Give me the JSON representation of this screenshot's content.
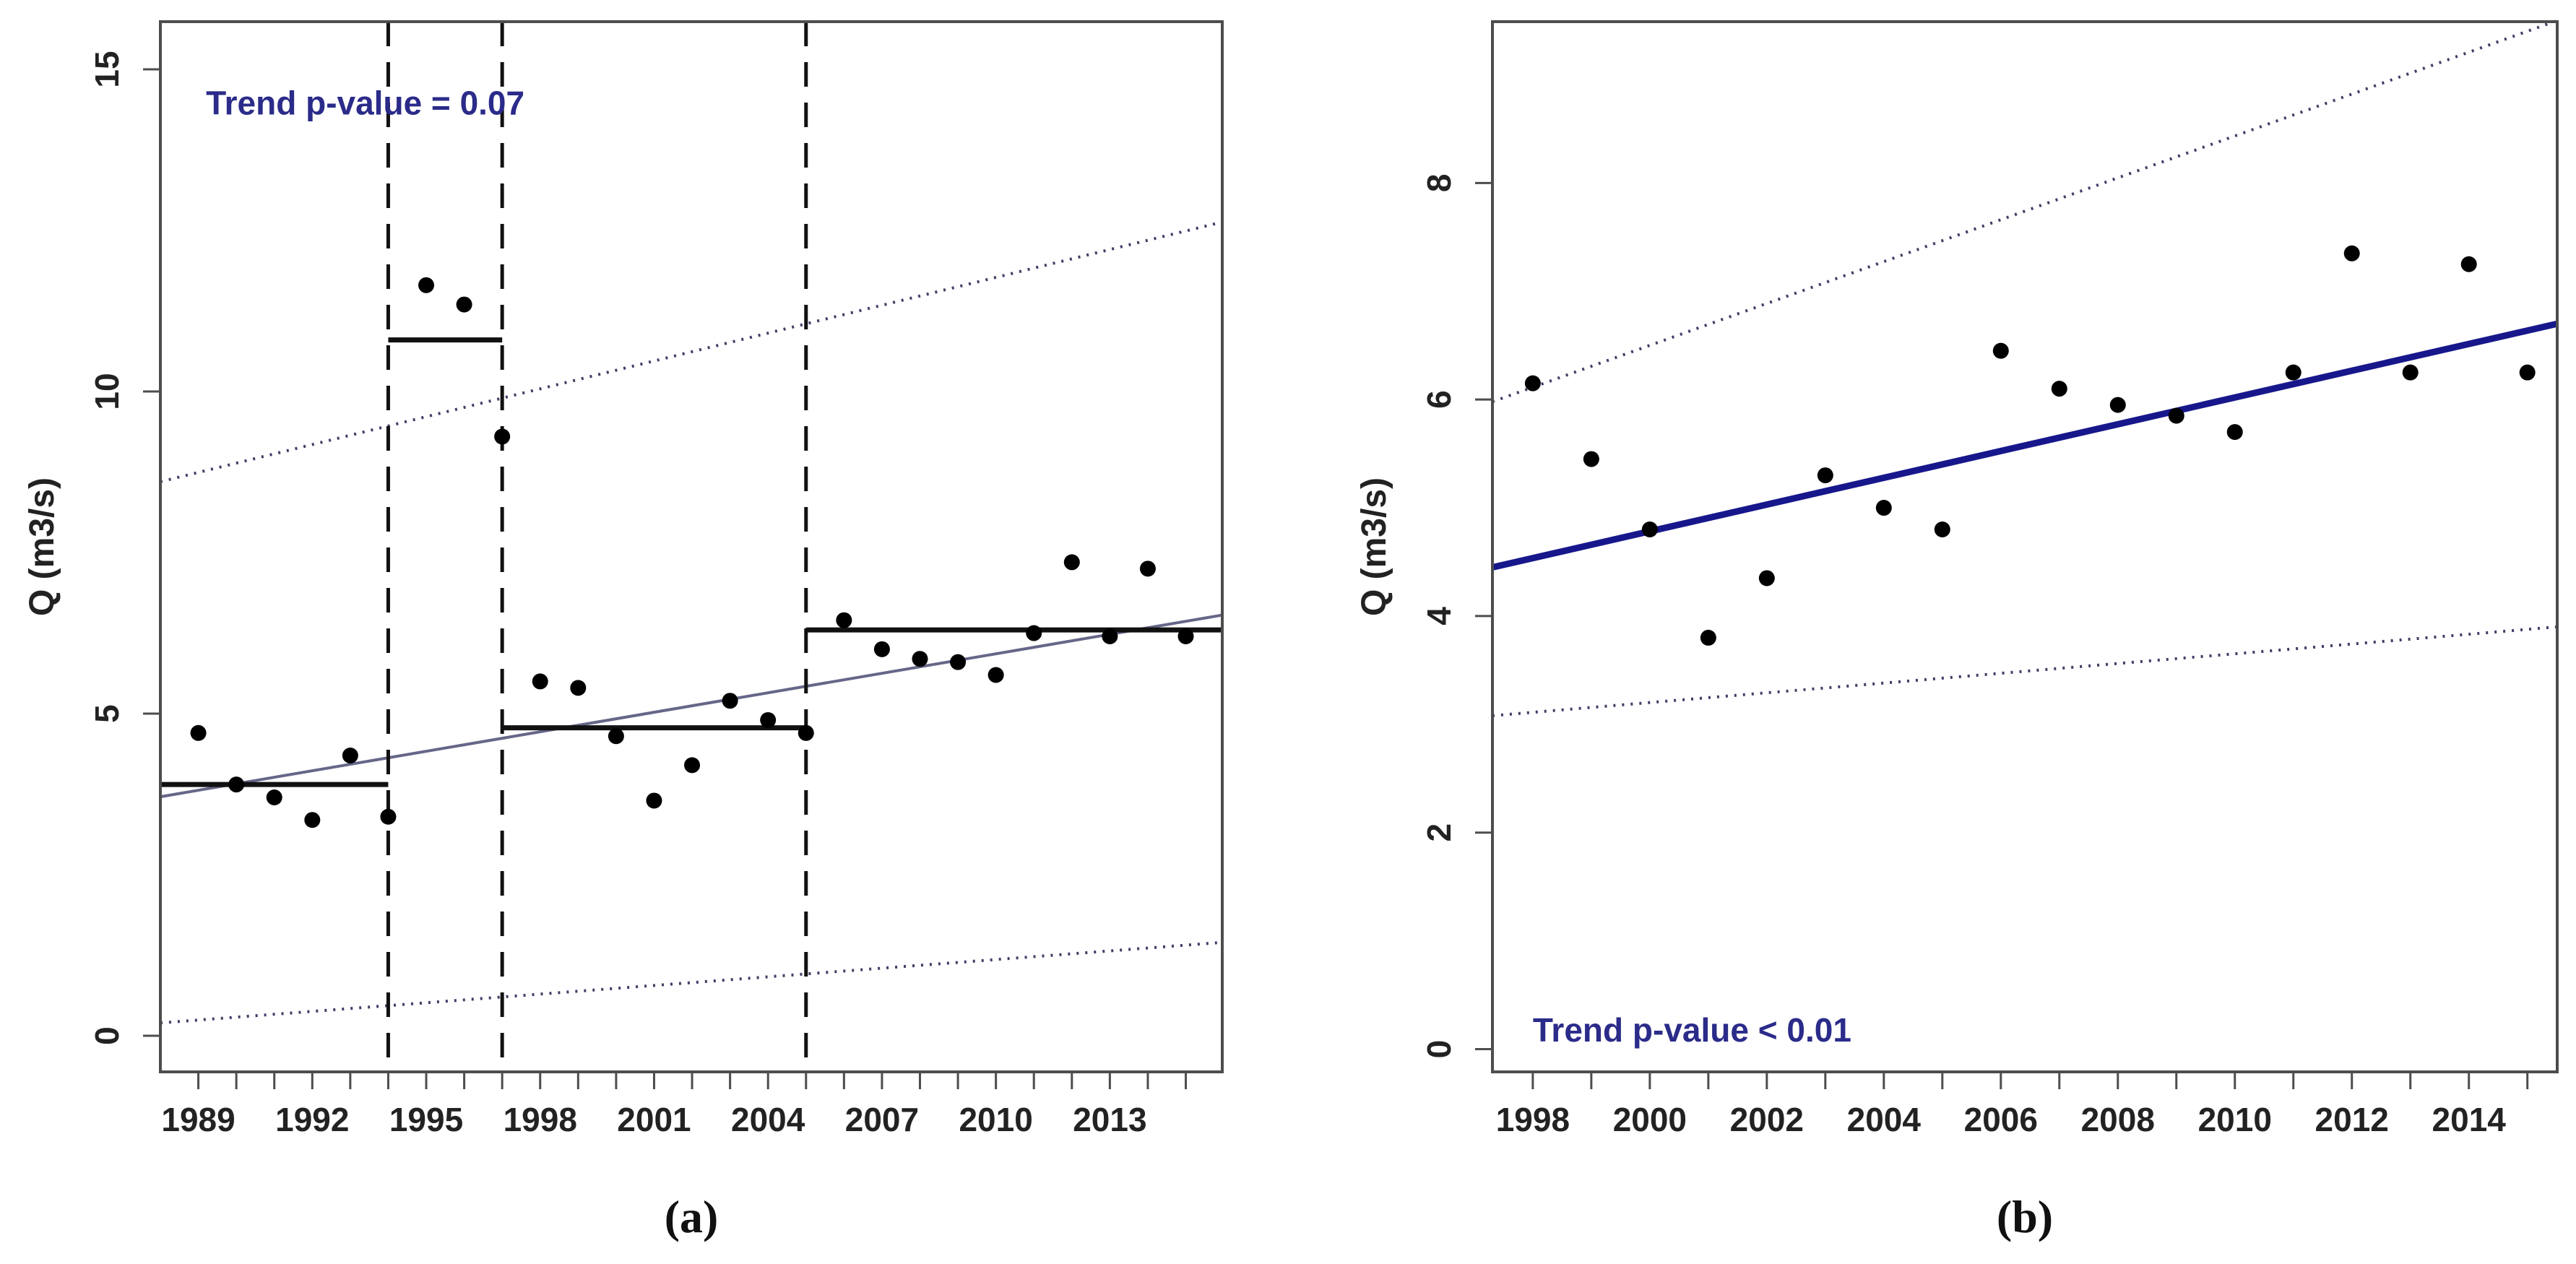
{
  "colors": {
    "background": "#ffffff",
    "axis": "#4d4d4d",
    "tick_text": "#222222",
    "point": "#000000",
    "segment_mean": "#111111",
    "dashed_vline": "#111111",
    "trend_thin": "#666688",
    "trend_thick": "#17178c",
    "confidence_dotted": "#3f3f66",
    "annotation_text": "#2b2b8a"
  },
  "chart_data": [
    {
      "id": "a",
      "type": "scatter",
      "caption": "(a)",
      "ylabel": "Q (m3/s)",
      "annotation": {
        "text": "Trend p-value = 0.07",
        "x": 1989.2,
        "y": 14.3
      },
      "x_range": [
        1988.0,
        2015.96
      ],
      "y_range": [
        -0.56,
        15.74
      ],
      "x_ticks": {
        "from": 1989,
        "to": 2015,
        "step": 1
      },
      "x_tick_labels": [
        "1989",
        "1992",
        "1995",
        "1998",
        "2001",
        "2004",
        "2007",
        "2010",
        "2013"
      ],
      "y_ticks": [
        0,
        5,
        10,
        15
      ],
      "points": {
        "years": [
          1989,
          1990,
          1991,
          1992,
          1993,
          1994,
          1995,
          1996,
          1997,
          1998,
          1999,
          2000,
          2001,
          2002,
          2003,
          2004,
          2005,
          2006,
          2007,
          2008,
          2009,
          2010,
          2011,
          2012,
          2013,
          2014,
          2015
        ],
        "values": [
          4.7,
          3.9,
          3.7,
          3.35,
          4.35,
          3.4,
          11.65,
          11.35,
          9.3,
          5.5,
          5.4,
          4.65,
          3.65,
          4.2,
          5.2,
          4.9,
          4.7,
          6.45,
          6.0,
          5.85,
          5.8,
          5.6,
          6.25,
          7.35,
          6.2,
          7.25,
          6.2
        ]
      },
      "change_points": [
        1994,
        1997,
        2005
      ],
      "segment_means": [
        {
          "from": 1988.0,
          "to": 1994,
          "value": 3.9
        },
        {
          "from": 1994,
          "to": 1997,
          "value": 10.8
        },
        {
          "from": 1997,
          "to": 2005,
          "value": 4.78
        },
        {
          "from": 2005,
          "to": 2015.96,
          "value": 6.3
        }
      ],
      "trend_line": {
        "x1": 1988.0,
        "y1": 3.71,
        "x2": 2015.96,
        "y2": 6.53
      },
      "confidence_band": {
        "upper": {
          "x1": 1988.0,
          "y1": 8.6,
          "x2": 2015.96,
          "y2": 12.63
        },
        "lower": {
          "x1": 1988.0,
          "y1": 0.2,
          "x2": 2015.96,
          "y2": 1.45
        }
      }
    },
    {
      "id": "b",
      "type": "scatter",
      "caption": "(b)",
      "ylabel": "Q (m3/s)",
      "annotation": {
        "text": "Trend p-value < 0.01",
        "x": 1998.0,
        "y": 0.07
      },
      "x_range": [
        1997.31,
        2015.51
      ],
      "y_range": [
        -0.21,
        9.49
      ],
      "x_ticks": {
        "from": 1998,
        "to": 2015,
        "step": 1
      },
      "x_tick_labels": [
        "1998",
        "2000",
        "2002",
        "2004",
        "2006",
        "2008",
        "2010",
        "2012",
        "2014"
      ],
      "y_ticks": [
        0,
        2,
        4,
        6,
        8
      ],
      "points": {
        "years": [
          1998,
          1999,
          2000,
          2001,
          2002,
          2003,
          2004,
          2005,
          2006,
          2007,
          2008,
          2009,
          2010,
          2011,
          2012,
          2013,
          2014,
          2015
        ],
        "values": [
          6.15,
          5.45,
          4.8,
          3.8,
          4.35,
          5.3,
          5.0,
          4.8,
          6.45,
          6.1,
          5.95,
          5.85,
          5.7,
          6.25,
          7.35,
          6.25,
          7.25,
          6.25
        ]
      },
      "change_points": [],
      "segment_means": [],
      "trend_line": {
        "x1": 1997.31,
        "y1": 4.45,
        "x2": 2015.51,
        "y2": 6.7
      },
      "confidence_band": {
        "upper": {
          "x1": 1997.31,
          "y1": 5.98,
          "x2": 2015.51,
          "y2": 9.5
        },
        "lower": {
          "x1": 1997.31,
          "y1": 3.08,
          "x2": 2015.51,
          "y2": 3.9
        }
      }
    }
  ]
}
